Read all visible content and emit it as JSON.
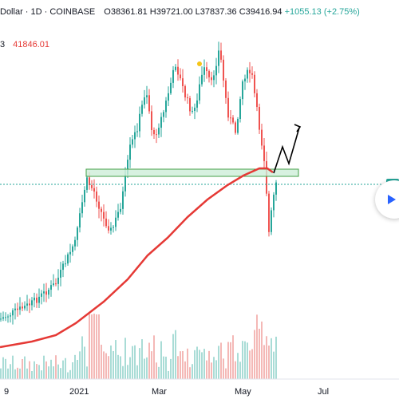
{
  "legend": {
    "symbol": "Dollar · 1D · COINBASE",
    "open": "O38361.81",
    "high": "H39721.00",
    "low": "L37837.36",
    "close": "C39416.94",
    "change": "+1055.13 (+2.75%)",
    "ma_prefix": "3",
    "ma_value": "41846.01"
  },
  "x_axis": {
    "labels": [
      "9",
      "2021",
      "Mar",
      "May",
      "Jul"
    ]
  },
  "colors": {
    "up": "#26a69a",
    "down": "#ef5350",
    "ma": "#e53935",
    "zone_fill": "#cdeed8",
    "zone_stroke": "#43a047",
    "arrow": "#000000",
    "dot": "#f5c518",
    "price_line": "#26a69a"
  },
  "icons": {
    "play": "play-icon"
  }
}
